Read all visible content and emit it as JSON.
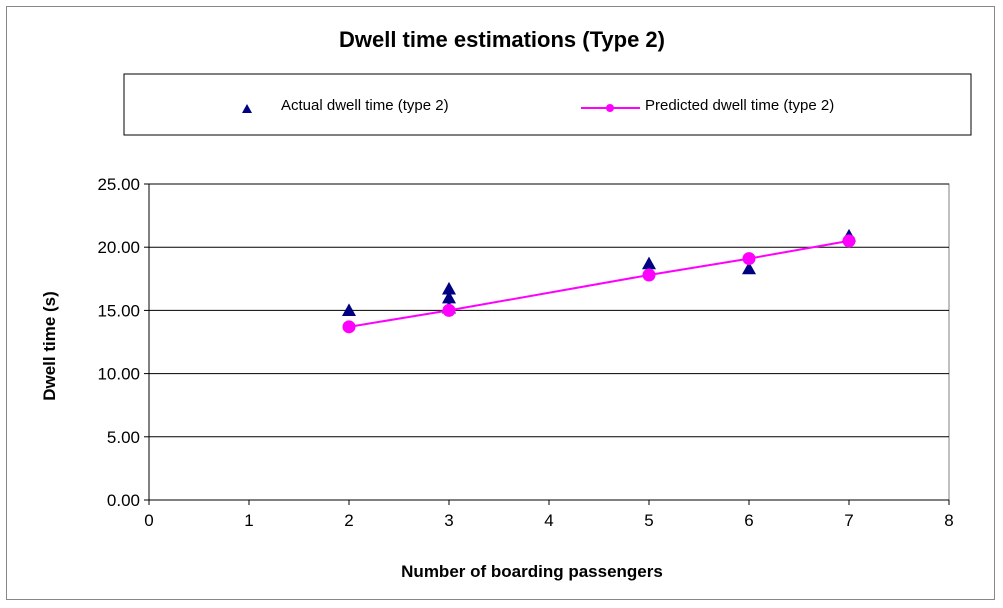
{
  "chart_data": {
    "type": "scatter",
    "title": "Dwell time estimations (Type 2)",
    "xlabel": "Number of boarding passengers",
    "ylabel": "Dwell time (s)",
    "xlim": [
      0,
      8
    ],
    "ylim": [
      0,
      25
    ],
    "x_ticks": [
      "0",
      "1",
      "2",
      "3",
      "4",
      "5",
      "6",
      "7",
      "8"
    ],
    "y_ticks": [
      "0.00",
      "5.00",
      "10.00",
      "15.00",
      "20.00",
      "25.00"
    ],
    "grid": "horizontal",
    "legend_position": "top",
    "series": [
      {
        "name": "Actual dwell time (type 2)",
        "marker": "triangle",
        "color": "#000080",
        "points": [
          {
            "x": 2,
            "y": 15.0
          },
          {
            "x": 3,
            "y": 15.2
          },
          {
            "x": 3,
            "y": 16.0
          },
          {
            "x": 3,
            "y": 16.7
          },
          {
            "x": 5,
            "y": 18.7
          },
          {
            "x": 6,
            "y": 18.3
          },
          {
            "x": 7,
            "y": 20.9
          }
        ]
      },
      {
        "name": "Predicted dwell time (type 2)",
        "marker": "circle",
        "line": true,
        "color": "#FF00FF",
        "points": [
          {
            "x": 2,
            "y": 13.7
          },
          {
            "x": 3,
            "y": 15.0
          },
          {
            "x": 5,
            "y": 17.8
          },
          {
            "x": 6,
            "y": 19.1
          },
          {
            "x": 7,
            "y": 20.5
          }
        ]
      }
    ]
  }
}
